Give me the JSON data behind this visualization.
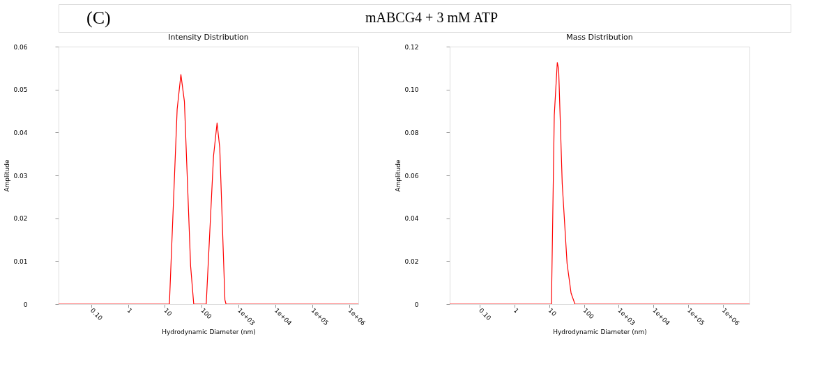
{
  "chart_data": [
    {
      "type": "line",
      "title": "Intensity Distribution",
      "xlabel": "Hydrodynamic Diameter (nm)",
      "ylabel": "Amplitude",
      "log": "x",
      "annotations": [
        "(C)",
        "mABCG4 + 3 mM ATP"
      ],
      "x": [
        0.013,
        13.3,
        21.6,
        27.3,
        34.0,
        50.1,
        60.9,
        133,
        210,
        262,
        310,
        428,
        458,
        1800000
      ],
      "series": [
        {
          "color": "#ff0000",
          "values": [
            0,
            0,
            0.0454,
            0.0535,
            0.0472,
            0.0089,
            0,
            0,
            0.0345,
            0.0422,
            0.0364,
            0.001,
            0,
            0
          ]
        }
      ],
      "xlim": [
        0.013,
        1800000
      ],
      "ylim": [
        0,
        0.06
      ],
      "xticks": [
        {
          "value": 0.1,
          "label": "0.10"
        },
        1,
        10,
        100,
        {
          "value": 1000,
          "label": "1e+03"
        },
        {
          "value": 10000,
          "label": "1e+04"
        },
        {
          "value": 100000,
          "label": "1e+05"
        },
        {
          "value": 1000000,
          "label": "1e+06"
        }
      ],
      "yticks": [
        0,
        0.01,
        0.02,
        0.03,
        0.04,
        0.05,
        0.06
      ],
      "grid": false
    },
    {
      "type": "line",
      "title": "Mass Distribution",
      "xlabel": "Hydrodynamic Diameter (nm)",
      "ylabel": "Amplitude",
      "log": "x",
      "x": [
        0.0137,
        11.6,
        14.0,
        17.1,
        18.7,
        23.7,
        32.7,
        42.6,
        55.1,
        5800000
      ],
      "series": [
        {
          "color": "#ff0000",
          "values": [
            0,
            0,
            0.088,
            0.1126,
            0.1095,
            0.0562,
            0.0189,
            0.0051,
            0,
            0
          ]
        }
      ],
      "xlim": [
        0.0137,
        5800000
      ],
      "ylim": [
        0,
        0.12
      ],
      "xticks": [
        {
          "value": 0.1,
          "label": "0.10"
        },
        1,
        10,
        100,
        {
          "value": 1000,
          "label": "1e+03"
        },
        {
          "value": 10000,
          "label": "1e+04"
        },
        {
          "value": 100000,
          "label": "1e+05"
        },
        {
          "value": 1000000,
          "label": "1e+06"
        }
      ],
      "yticks": [
        0,
        0.02,
        0.04,
        0.06,
        0.08,
        {
          "value": 0.1,
          "label": "0.10"
        },
        0.12
      ],
      "grid": false
    }
  ]
}
